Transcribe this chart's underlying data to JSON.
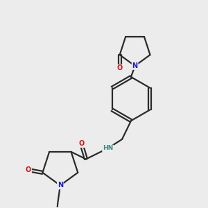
{
  "background_color": "#ececec",
  "bond_color": "#2a2a2a",
  "atom_colors": {
    "N": "#1a1acc",
    "O": "#dd1111",
    "H": "#3a8888",
    "C": "#2a2a2a"
  },
  "figsize": [
    3.0,
    3.0
  ],
  "dpi": 100
}
